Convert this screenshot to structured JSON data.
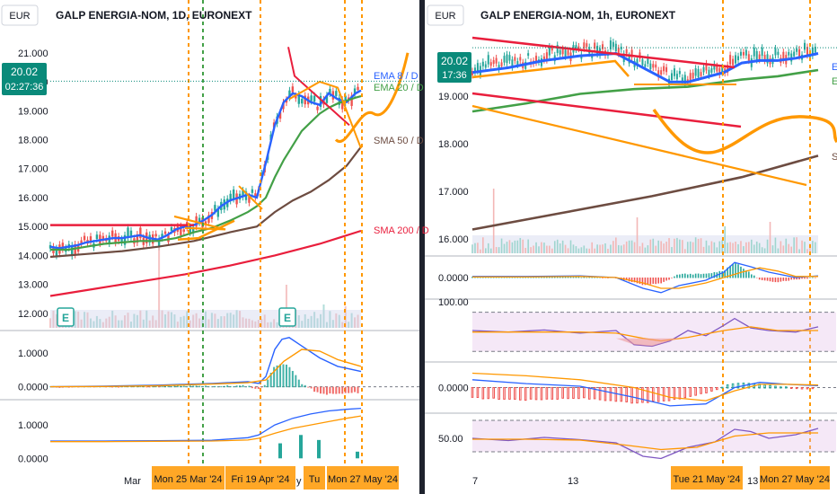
{
  "left_panel": {
    "currency": "EUR",
    "title": "GALP ENERGIA-NOM, 1D, EURONEXT",
    "price_badge": {
      "price": "20.02",
      "countdown": "02:27:36"
    },
    "y_ticks": [
      "21.000",
      "20.000",
      "19.000",
      "18.000",
      "17.000",
      "16.000",
      "15.000",
      "14.000",
      "13.000",
      "12.000"
    ],
    "line_labels": {
      "ema8": "EMA 8 / D",
      "ema20": "EMA 20 / D",
      "sma50": "SMA 50 / D",
      "sma200": "SMA 200 / D"
    },
    "macd_ticks": [
      "1.0000",
      "0.0000"
    ],
    "bottom_ticks": [
      "1.0000",
      "0.0000"
    ],
    "x_labels": {
      "mar": "Mar",
      "may_partial": "y"
    },
    "x_highlight_labels": [
      "Mon 25 Mar '24",
      "Fri 19 Apr '24",
      "Tu",
      "Mon 27 May '24"
    ],
    "earnings_marker": "E"
  },
  "right_panel": {
    "currency": "EUR",
    "title": "GALP ENERGIA-NOM, 1h, EURONEXT",
    "price_badge": {
      "price": "20.02",
      "countdown": "17:36"
    },
    "y_ticks": [
      "19.000",
      "18.000",
      "17.000",
      "16.000"
    ],
    "partial_labels": [
      "E",
      "E",
      "S"
    ],
    "macd_ticks": [
      "0.0000"
    ],
    "rsi_ticks": [
      "100.00"
    ],
    "macd2_ticks": [
      "0.0000"
    ],
    "osc_ticks": [
      "50.00"
    ],
    "x_labels": [
      "7",
      "13",
      "13"
    ],
    "x_highlight_labels": [
      "Tue 21 May '24",
      "Mon 27 May '24"
    ]
  },
  "colors": {
    "ema8": "#2962ff",
    "ema20": "#43a047",
    "sma50": "#6d4c41",
    "sma200": "#e91e3c",
    "trend_orange": "#ff9800",
    "badge": "#0a8a7a",
    "up": "#26a69a",
    "down": "#ef5350"
  },
  "chart_data": [
    {
      "type": "line",
      "panel": "left-price",
      "title": "GALP ENERGIA-NOM, 1D, EURONEXT",
      "currency": "EUR",
      "ylim": [
        11.5,
        21.8
      ],
      "last_price": 20.02,
      "series": [
        {
          "name": "EMA 8 / D",
          "x": [
            0,
            10,
            20,
            30,
            40,
            50,
            60,
            70,
            80,
            90,
            100,
            110,
            120,
            130,
            140,
            150,
            160,
            170,
            180,
            190,
            200,
            210,
            220,
            230,
            240,
            250,
            260,
            270,
            280,
            290,
            300,
            310,
            320,
            330,
            340,
            346
          ],
          "values": [
            14.3,
            14.25,
            14.3,
            14.35,
            14.45,
            14.5,
            14.55,
            14.6,
            14.6,
            14.65,
            14.7,
            14.6,
            14.55,
            14.7,
            14.9,
            15.0,
            15.05,
            15.2,
            15.4,
            15.7,
            15.9,
            16.0,
            16.1,
            16.0,
            17.2,
            18.5,
            19.3,
            19.6,
            19.5,
            19.3,
            19.2,
            19.6,
            19.4,
            19.3,
            19.6,
            19.7
          ]
        },
        {
          "name": "EMA 20 / D",
          "x": [
            0,
            20,
            40,
            60,
            80,
            100,
            120,
            140,
            160,
            180,
            200,
            220,
            230,
            240,
            250,
            260,
            270,
            280,
            290,
            300,
            310,
            320,
            330,
            340,
            346
          ],
          "values": [
            14.2,
            14.2,
            14.3,
            14.4,
            14.45,
            14.5,
            14.5,
            14.6,
            14.8,
            14.95,
            15.2,
            15.5,
            15.7,
            16.0,
            16.7,
            17.3,
            17.8,
            18.3,
            18.6,
            18.9,
            19.1,
            19.25,
            19.35,
            19.45,
            19.5
          ]
        },
        {
          "name": "SMA 50 / D",
          "x": [
            0,
            40,
            80,
            120,
            160,
            200,
            230,
            250,
            270,
            290,
            310,
            330,
            346
          ],
          "values": [
            13.95,
            14.05,
            14.15,
            14.3,
            14.5,
            14.8,
            15.0,
            15.5,
            15.9,
            16.2,
            16.6,
            17.1,
            17.75
          ]
        },
        {
          "name": "SMA 200 / D",
          "x": [
            0,
            50,
            100,
            150,
            200,
            250,
            300,
            346
          ],
          "values": [
            12.6,
            12.85,
            13.1,
            13.35,
            13.65,
            14.0,
            14.4,
            14.85
          ]
        }
      ]
    },
    {
      "type": "area",
      "panel": "left-macd",
      "ylim": [
        -0.3,
        1.55
      ],
      "series": [
        {
          "name": "",
          "x": [
            0,
            60,
            120,
            180,
            220,
            232,
            240,
            250,
            258,
            266,
            280,
            300,
            320,
            346
          ],
          "values": [
            0.0,
            0.02,
            0.05,
            0.1,
            0.15,
            0.1,
            0.3,
            1.1,
            1.4,
            1.45,
            1.2,
            0.85,
            0.6,
            0.45
          ]
        },
        {
          "name": "",
          "x": [
            0,
            60,
            120,
            180,
            220,
            240,
            260,
            280,
            300,
            320,
            346
          ],
          "values": [
            0.0,
            0.01,
            0.03,
            0.08,
            0.12,
            0.2,
            0.75,
            1.1,
            1.05,
            0.8,
            0.6
          ]
        }
      ]
    },
    {
      "type": "line",
      "panel": "left-bottom",
      "ylim": [
        -0.1,
        1.65
      ],
      "series": [
        {
          "name": "",
          "x": [
            0,
            60,
            120,
            180,
            220,
            232,
            250,
            270,
            290,
            310,
            330,
            346
          ],
          "values": [
            0.52,
            0.52,
            0.53,
            0.54,
            0.62,
            0.7,
            1.0,
            1.2,
            1.33,
            1.42,
            1.47,
            1.5
          ]
        },
        {
          "name": "",
          "x": [
            0,
            60,
            120,
            180,
            220,
            232,
            250,
            270,
            290,
            310,
            330,
            346
          ],
          "values": [
            0.5,
            0.5,
            0.51,
            0.52,
            0.55,
            0.6,
            0.75,
            0.9,
            1.0,
            1.1,
            1.2,
            1.27
          ]
        }
      ]
    },
    {
      "type": "line",
      "panel": "right-price",
      "title": "GALP ENERGIA-NOM, 1h, EURONEXT",
      "currency": "EUR",
      "ylim": [
        15.7,
        20.4
      ],
      "last_price": 20.02,
      "series": [
        {
          "name": "",
          "x": [
            0,
            40,
            80,
            120,
            160,
            200,
            220,
            240,
            260,
            280,
            300,
            320,
            340,
            360,
            385
          ],
          "values": [
            19.5,
            19.6,
            19.75,
            19.85,
            19.9,
            19.5,
            19.3,
            19.3,
            19.4,
            19.5,
            19.7,
            19.75,
            19.75,
            19.8,
            19.9
          ]
        },
        {
          "name": "",
          "x": [
            0,
            60,
            120,
            180,
            240,
            300,
            340,
            385
          ],
          "values": [
            18.68,
            18.85,
            19.05,
            19.15,
            19.2,
            19.35,
            19.42,
            19.55
          ]
        },
        {
          "name": "",
          "x": [
            0,
            100,
            200,
            300,
            385
          ],
          "values": [
            16.2,
            16.55,
            16.9,
            17.3,
            17.75
          ]
        }
      ]
    },
    {
      "type": "line",
      "panel": "right-macd",
      "ylim": [
        -0.35,
        0.35
      ],
      "series": [
        {
          "name": "",
          "x": [
            0,
            60,
            120,
            160,
            190,
            210,
            230,
            260,
            280,
            292,
            310,
            330,
            360,
            385
          ],
          "values": [
            0.02,
            0.02,
            0.03,
            0.0,
            -0.2,
            -0.28,
            -0.15,
            -0.05,
            0.1,
            0.28,
            0.2,
            0.1,
            0.0,
            0.03
          ]
        },
        {
          "name": "",
          "x": [
            0,
            60,
            120,
            160,
            190,
            210,
            230,
            260,
            280,
            300,
            320,
            340,
            360,
            385
          ],
          "values": [
            0.01,
            0.01,
            0.02,
            0.0,
            -0.1,
            -0.2,
            -0.2,
            -0.1,
            0.0,
            0.1,
            0.18,
            0.12,
            0.02,
            0.02
          ]
        }
      ]
    },
    {
      "type": "line",
      "panel": "right-rsi",
      "ylim": [
        0,
        110
      ],
      "series": [
        {
          "name": "",
          "x": [
            0,
            40,
            80,
            120,
            160,
            180,
            200,
            220,
            240,
            260,
            280,
            292,
            310,
            330,
            360,
            385
          ],
          "values": [
            55,
            52,
            56,
            50,
            55,
            28,
            25,
            35,
            55,
            45,
            65,
            78,
            60,
            55,
            52,
            62
          ]
        },
        {
          "name": "",
          "x": [
            0,
            60,
            120,
            160,
            190,
            210,
            240,
            280,
            310,
            340,
            385
          ],
          "values": [
            52,
            52,
            52,
            50,
            40,
            35,
            42,
            55,
            62,
            55,
            55
          ]
        }
      ]
    },
    {
      "type": "line",
      "panel": "right-macd2",
      "ylim": [
        -0.35,
        0.35
      ],
      "series": [
        {
          "name": "",
          "x": [
            0,
            60,
            120,
            180,
            220,
            260,
            292,
            320,
            350,
            385
          ],
          "values": [
            0.12,
            0.06,
            0.02,
            -0.15,
            -0.28,
            -0.25,
            0.0,
            0.08,
            0.05,
            0.03
          ]
        },
        {
          "name": "",
          "x": [
            0,
            60,
            120,
            180,
            220,
            260,
            292,
            320,
            350,
            385
          ],
          "values": [
            0.22,
            0.18,
            0.12,
            0.0,
            -0.15,
            -0.2,
            -0.05,
            0.05,
            0.05,
            0.04
          ]
        }
      ]
    },
    {
      "type": "line",
      "panel": "right-osc",
      "ylim": [
        0,
        100
      ],
      "series": [
        {
          "name": "",
          "x": [
            0,
            40,
            80,
            120,
            160,
            190,
            210,
            240,
            270,
            292,
            310,
            330,
            360,
            385
          ],
          "values": [
            50,
            45,
            52,
            47,
            40,
            10,
            5,
            30,
            42,
            70,
            65,
            50,
            58,
            72
          ]
        },
        {
          "name": "",
          "x": [
            0,
            60,
            120,
            170,
            210,
            250,
            292,
            330,
            385
          ],
          "values": [
            48,
            48,
            46,
            35,
            25,
            30,
            55,
            62,
            62
          ]
        }
      ]
    }
  ]
}
